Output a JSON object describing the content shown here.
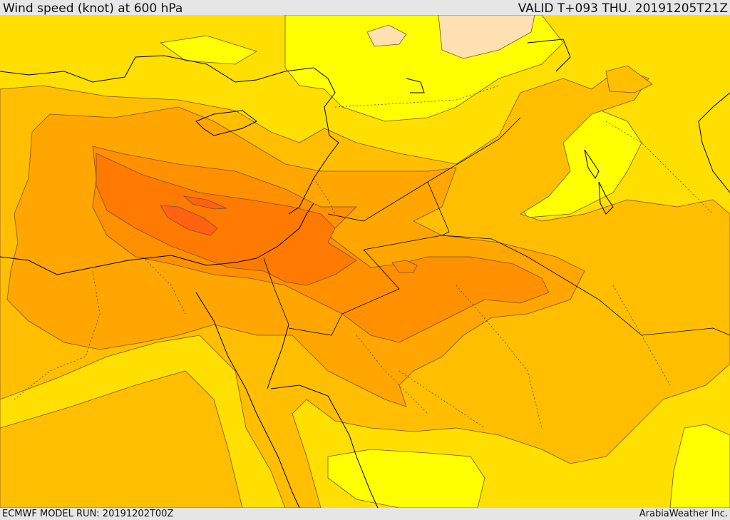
{
  "header": {
    "title": "Wind speed (knot) at 600 hPa",
    "valid_time": "VALID T+093 THU. 20191205T21Z"
  },
  "footer": {
    "model_run": "ECMWF MODEL RUN: 20191202T00Z",
    "credit": "ArabiaWeather Inc."
  },
  "map": {
    "region": "Middle East / Eastern Mediterranean",
    "field": "wind speed",
    "level": "600 hPa",
    "colors": {
      "band_lightest": "#ffe0b0",
      "band_yellow": "#ffff00",
      "band_gold": "#ffdf00",
      "band_amber": "#ffbf00",
      "band_orange_light": "#ffa600",
      "band_orange": "#ff9000",
      "band_orange_dark": "#ff7a00",
      "band_red_orange": "#ff6210",
      "coastline": "#000000",
      "border": "#000000",
      "contour": "#7a5030"
    }
  }
}
